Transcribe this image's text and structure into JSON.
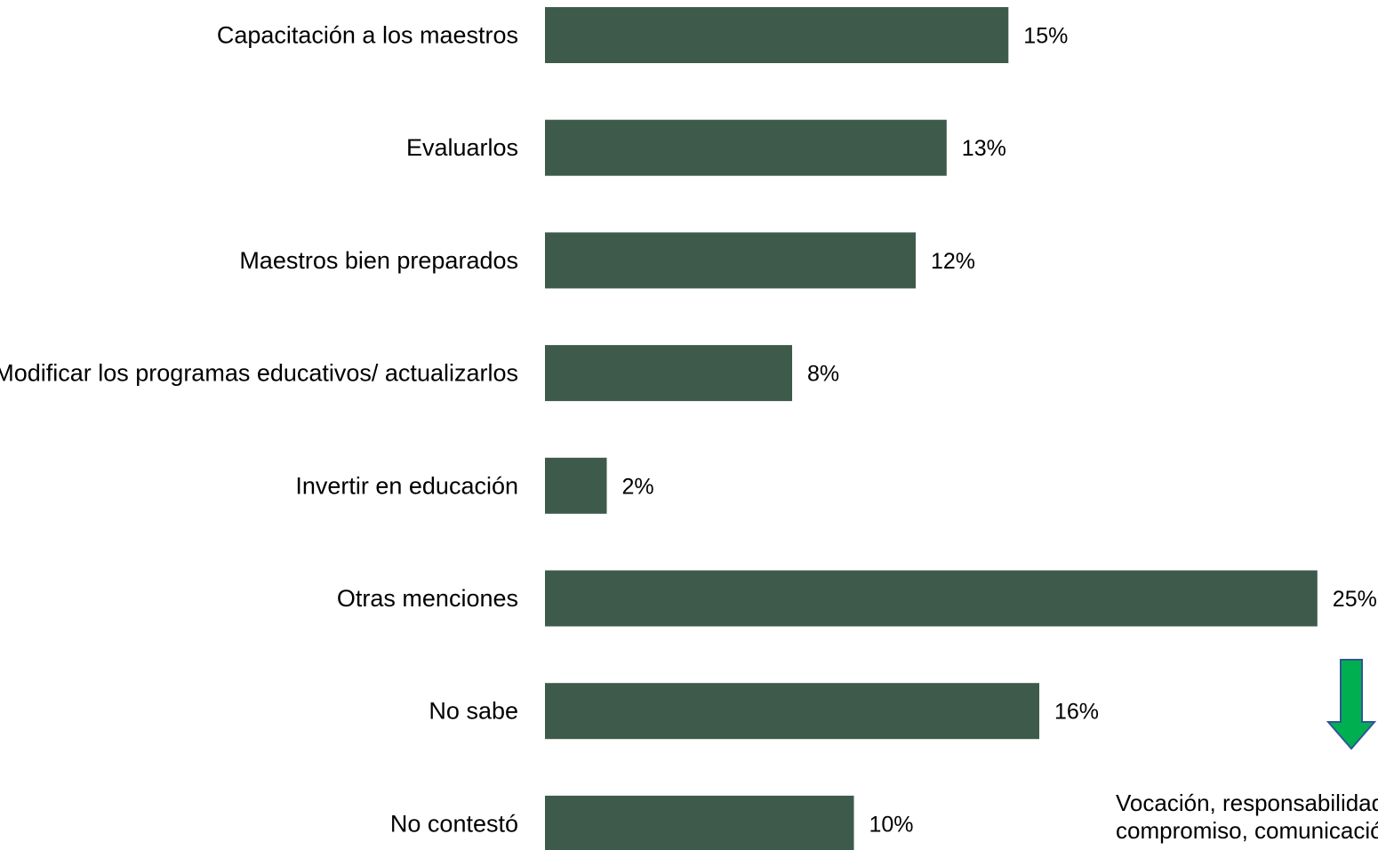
{
  "chart_data": {
    "type": "bar",
    "orientation": "horizontal",
    "categories": [
      "Capacitación a los maestros",
      "Evaluarlos",
      "Maestros bien preparados",
      "Modificar los programas educativos/ actualizarlos",
      "Invertir en educación",
      "Otras menciones",
      "No sabe",
      "No contestó"
    ],
    "values": [
      15,
      13,
      12,
      8,
      2,
      25,
      16,
      10
    ],
    "value_labels": [
      "15%",
      "13%",
      "12%",
      "8%",
      "2%",
      "25%",
      "16%",
      "10%"
    ],
    "unit": "%",
    "xlim": [
      0,
      25
    ],
    "grid": false,
    "legend": "none",
    "bar_color": "#3e5a4b"
  },
  "annotation": {
    "arrow_color": "#00b050",
    "arrow_outline": "#2f5597",
    "arrow_icon": "down-arrow-icon",
    "lines": [
      "Vocación, responsabilidad,",
      "compromiso, comunicación"
    ]
  }
}
